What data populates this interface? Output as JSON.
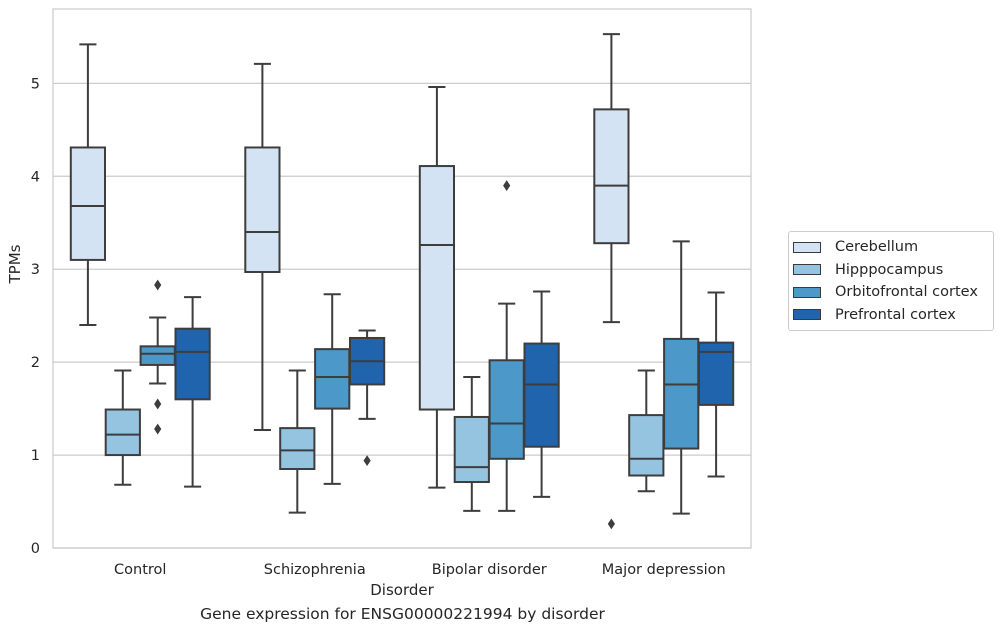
{
  "chart_data": {
    "type": "box",
    "title": "",
    "caption": "Gene expression for ENSG00000221994 by disorder",
    "xlabel": "Disorder",
    "ylabel": "TPMs",
    "ylim": [
      0,
      5.8
    ],
    "yticks": [
      0,
      1,
      2,
      3,
      4,
      5
    ],
    "grid": "horizontal",
    "legend_position": "right",
    "categories": [
      "Control",
      "Schizophrenia",
      "Bipolar disorder",
      "Major depression"
    ],
    "series": [
      {
        "name": "Cerebellum",
        "color": "#d3e3f3",
        "boxes": [
          {
            "whislo": 2.4,
            "q1": 3.1,
            "med": 3.68,
            "q3": 4.31,
            "whishi": 5.42,
            "fliers": []
          },
          {
            "whislo": 1.27,
            "q1": 2.97,
            "med": 3.4,
            "q3": 4.31,
            "whishi": 5.21,
            "fliers": []
          },
          {
            "whislo": 0.65,
            "q1": 1.49,
            "med": 3.26,
            "q3": 4.11,
            "whishi": 4.96,
            "fliers": []
          },
          {
            "whislo": 2.43,
            "q1": 3.28,
            "med": 3.9,
            "q3": 4.72,
            "whishi": 5.53,
            "fliers": [
              0.26
            ]
          }
        ]
      },
      {
        "name": "Hipppocampus",
        "color": "#94c4df",
        "boxes": [
          {
            "whislo": 0.68,
            "q1": 1.0,
            "med": 1.22,
            "q3": 1.49,
            "whishi": 1.91,
            "fliers": []
          },
          {
            "whislo": 0.38,
            "q1": 0.85,
            "med": 1.05,
            "q3": 1.29,
            "whishi": 1.91,
            "fliers": []
          },
          {
            "whislo": 0.4,
            "q1": 0.71,
            "med": 0.87,
            "q3": 1.41,
            "whishi": 1.84,
            "fliers": []
          },
          {
            "whislo": 0.61,
            "q1": 0.78,
            "med": 0.96,
            "q3": 1.43,
            "whishi": 1.91,
            "fliers": []
          }
        ]
      },
      {
        "name": "Orbitofrontal cortex",
        "color": "#4b98c9",
        "boxes": [
          {
            "whislo": 1.77,
            "q1": 1.97,
            "med": 2.09,
            "q3": 2.17,
            "whishi": 2.48,
            "fliers": [
              2.83,
              1.55,
              1.28
            ]
          },
          {
            "whislo": 0.69,
            "q1": 1.5,
            "med": 1.84,
            "q3": 2.14,
            "whishi": 2.73,
            "fliers": []
          },
          {
            "whislo": 0.4,
            "q1": 0.96,
            "med": 1.34,
            "q3": 2.02,
            "whishi": 2.63,
            "fliers": [
              3.9
            ]
          },
          {
            "whislo": 0.37,
            "q1": 1.07,
            "med": 1.76,
            "q3": 2.25,
            "whishi": 3.3,
            "fliers": []
          }
        ]
      },
      {
        "name": "Prefrontal cortex",
        "color": "#2064ae",
        "boxes": [
          {
            "whislo": 0.66,
            "q1": 1.6,
            "med": 2.11,
            "q3": 2.36,
            "whishi": 2.7,
            "fliers": []
          },
          {
            "whislo": 1.39,
            "q1": 1.76,
            "med": 2.01,
            "q3": 2.26,
            "whishi": 2.34,
            "fliers": [
              0.94
            ]
          },
          {
            "whislo": 0.55,
            "q1": 1.09,
            "med": 1.76,
            "q3": 2.2,
            "whishi": 2.76,
            "fliers": []
          },
          {
            "whislo": 0.77,
            "q1": 1.54,
            "med": 2.11,
            "q3": 2.21,
            "whishi": 2.75,
            "fliers": []
          }
        ]
      }
    ]
  }
}
